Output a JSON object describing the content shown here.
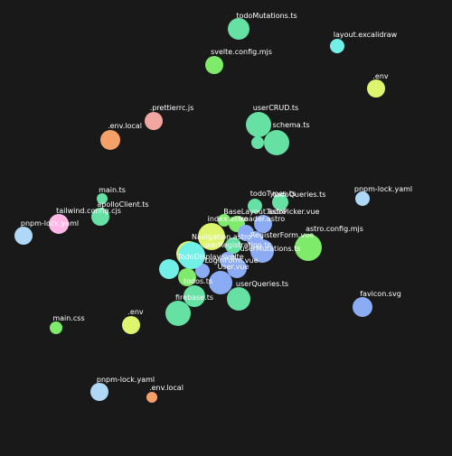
{
  "colors": {
    "background": "#19191a",
    "ts": "#66e0a3",
    "vue": "#8cabf5",
    "svelte": "#7eeb6a",
    "css": "#7eeb6a",
    "env": "#dcf46e",
    "env_local": "#f5a068",
    "json_lock": "#aed8f5",
    "excalidraw": "#72f0e8",
    "prettier": "#f2a6a0",
    "astro": "#ffb8e6"
  },
  "nodes": [
    {
      "id": "todoMutations",
      "label": "todoMutations.ts",
      "color": "#66e0a3"
    },
    {
      "id": "layout-excalidraw",
      "label": "layout.excalidraw",
      "color": "#72f0e8"
    },
    {
      "id": "svelte-config",
      "label": "svelte.config.mjs",
      "color": "#7eeb6a"
    },
    {
      "id": "env-1",
      "label": ".env",
      "color": "#dcf46e"
    },
    {
      "id": "prettierrc",
      "label": ".prettierrc.js",
      "color": "#f2a6a0"
    },
    {
      "id": "userCRUD",
      "label": "userCRUD.ts",
      "color": "#66e0a3"
    },
    {
      "id": "env-local-1",
      "label": ".env.local",
      "color": "#f5a068"
    },
    {
      "id": "schema",
      "label": "schema.ts",
      "color": "#66e0a3"
    },
    {
      "id": "schema-small",
      "label": "",
      "color": "#66e0a3"
    },
    {
      "id": "main-ts",
      "label": "main.ts",
      "color": "#66e0a3"
    },
    {
      "id": "todoTypes",
      "label": "todoTypes.ts",
      "color": "#66e0a3"
    },
    {
      "id": "todoQueries",
      "label": "todoQueries.ts",
      "color": "#66e0a3"
    },
    {
      "id": "pnpm-lock-1",
      "label": "pnpm-lock.yaml",
      "color": "#aed8f5"
    },
    {
      "id": "apolloClient",
      "label": "apolloClient.ts",
      "color": "#66e0a3"
    },
    {
      "id": "tailwind-config",
      "label": "tailwind.config.cjs",
      "color": "#ffb8e6"
    },
    {
      "id": "pnpm-lock-2",
      "label": "pnpm-lock.yaml",
      "color": "#aed8f5"
    },
    {
      "id": "BaseLayout",
      "label": "BaseLayout.astro",
      "color": "#7eeb6a"
    },
    {
      "id": "TodoPicker",
      "label": "TodoPicker.vue",
      "color": "#8cabf5"
    },
    {
      "id": "index-astro",
      "label": "index.astro",
      "color": "#7eeb6a"
    },
    {
      "id": "header-astro",
      "label": "header.astro",
      "color": "#8cabf5"
    },
    {
      "id": "astro-config",
      "label": "astro.config.mjs",
      "color": "#7eeb6a"
    },
    {
      "id": "RegisterForm",
      "label": "RegisterForm.vue",
      "color": "#8cabf5"
    },
    {
      "id": "Navigation-astro",
      "label": "Navigation.astro",
      "color": "#dcf46e"
    },
    {
      "id": "userRegistration",
      "label": "userRegistration.ts",
      "color": "#66e0a3"
    },
    {
      "id": "userMutations",
      "label": "userMutations.ts",
      "color": "#8cabf5"
    },
    {
      "id": "TodoDisplay",
      "label": "TodoDisplay.svelte",
      "color": "#72f0e8"
    },
    {
      "id": "LoginForm",
      "label": "LoginForm.vue",
      "color": "#8cabf5"
    },
    {
      "id": "User-vue",
      "label": "User.vue",
      "color": "#8cabf5"
    },
    {
      "id": "todos-ts",
      "label": "todos.ts",
      "color": "#7eeb6a"
    },
    {
      "id": "userQueries",
      "label": "userQueries.ts",
      "color": "#66e0a3"
    },
    {
      "id": "firebase-ts",
      "label": "firebase.ts",
      "color": "#66e0a3"
    },
    {
      "id": "firebase-small",
      "label": "",
      "color": "#66e0a3"
    },
    {
      "id": "favicon",
      "label": "favicon.svg",
      "color": "#8cabf5"
    },
    {
      "id": "main-css",
      "label": "main.css",
      "color": "#7eeb6a"
    },
    {
      "id": "env-2",
      "label": ".env",
      "color": "#dcf46e"
    },
    {
      "id": "pnpm-lock-3",
      "label": "pnpm-lock.yaml",
      "color": "#aed8f5"
    },
    {
      "id": "env-local-2",
      "label": ".env.local",
      "color": "#f5a068"
    }
  ]
}
